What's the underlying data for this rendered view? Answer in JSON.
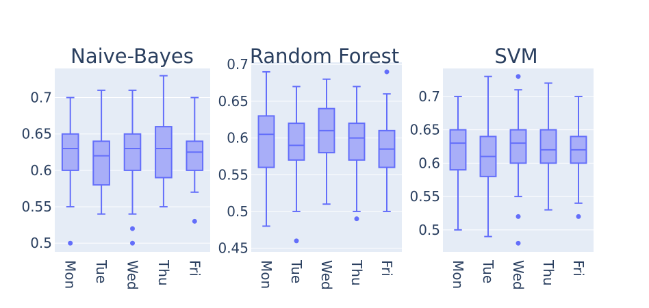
{
  "chart_data": [
    {
      "type": "box",
      "title": "Naive-Bayes",
      "categories": [
        "Mon",
        "Tue",
        "Wed",
        "Thu",
        "Fri"
      ],
      "ylim": [
        0.488,
        0.74
      ],
      "yticks": [
        0.5,
        0.55,
        0.6,
        0.65,
        0.7
      ],
      "ytick_labels": [
        "0.5",
        "0.55",
        "0.6",
        "0.65",
        "0.7"
      ],
      "boxes": [
        {
          "category": "Mon",
          "min": 0.55,
          "q1": 0.6,
          "median": 0.63,
          "q3": 0.65,
          "max": 0.7,
          "outliers": [
            0.5
          ]
        },
        {
          "category": "Tue",
          "min": 0.54,
          "q1": 0.58,
          "median": 0.62,
          "q3": 0.64,
          "max": 0.71,
          "outliers": []
        },
        {
          "category": "Wed",
          "min": 0.54,
          "q1": 0.6,
          "median": 0.63,
          "q3": 0.65,
          "max": 0.71,
          "outliers": [
            0.52,
            0.5
          ]
        },
        {
          "category": "Thu",
          "min": 0.55,
          "q1": 0.59,
          "median": 0.63,
          "q3": 0.66,
          "max": 0.73,
          "outliers": []
        },
        {
          "category": "Fri",
          "min": 0.57,
          "q1": 0.6,
          "median": 0.625,
          "q3": 0.64,
          "max": 0.7,
          "outliers": [
            0.53
          ]
        }
      ]
    },
    {
      "type": "box",
      "title": "Random Forest",
      "categories": [
        "Mon",
        "Tue",
        "Wed",
        "Thu",
        "Fri"
      ],
      "ylim": [
        0.445,
        0.703
      ],
      "yticks": [
        0.45,
        0.5,
        0.55,
        0.6,
        0.65,
        0.7
      ],
      "ytick_labels": [
        "0.45",
        "0.5",
        "0.55",
        "0.6",
        "0.65",
        "0.7"
      ],
      "boxes": [
        {
          "category": "Mon",
          "min": 0.48,
          "q1": 0.56,
          "median": 0.605,
          "q3": 0.63,
          "max": 0.69,
          "outliers": []
        },
        {
          "category": "Tue",
          "min": 0.5,
          "q1": 0.57,
          "median": 0.59,
          "q3": 0.62,
          "max": 0.67,
          "outliers": [
            0.46
          ]
        },
        {
          "category": "Wed",
          "min": 0.51,
          "q1": 0.58,
          "median": 0.61,
          "q3": 0.64,
          "max": 0.68,
          "outliers": []
        },
        {
          "category": "Thu",
          "min": 0.5,
          "q1": 0.57,
          "median": 0.6,
          "q3": 0.62,
          "max": 0.67,
          "outliers": [
            0.49
          ]
        },
        {
          "category": "Fri",
          "min": 0.5,
          "q1": 0.56,
          "median": 0.585,
          "q3": 0.61,
          "max": 0.66,
          "outliers": [
            0.69
          ]
        }
      ]
    },
    {
      "type": "box",
      "title": "SVM",
      "categories": [
        "Mon",
        "Tue",
        "Wed",
        "Thu",
        "Fri"
      ],
      "ylim": [
        0.467,
        0.742
      ],
      "yticks": [
        0.5,
        0.55,
        0.6,
        0.65,
        0.7
      ],
      "ytick_labels": [
        "0.5",
        "0.55",
        "0.6",
        "0.65",
        "0.7"
      ],
      "boxes": [
        {
          "category": "Mon",
          "min": 0.5,
          "q1": 0.59,
          "median": 0.63,
          "q3": 0.65,
          "max": 0.7,
          "outliers": []
        },
        {
          "category": "Tue",
          "min": 0.49,
          "q1": 0.58,
          "median": 0.61,
          "q3": 0.64,
          "max": 0.73,
          "outliers": []
        },
        {
          "category": "Wed",
          "min": 0.55,
          "q1": 0.6,
          "median": 0.63,
          "q3": 0.65,
          "max": 0.71,
          "outliers": [
            0.73,
            0.52,
            0.48
          ]
        },
        {
          "category": "Thu",
          "min": 0.53,
          "q1": 0.6,
          "median": 0.62,
          "q3": 0.65,
          "max": 0.72,
          "outliers": []
        },
        {
          "category": "Fri",
          "min": 0.54,
          "q1": 0.6,
          "median": 0.62,
          "q3": 0.64,
          "max": 0.7,
          "outliers": [
            0.52
          ]
        }
      ]
    }
  ],
  "colors": {
    "plot_bg": "#e5ecf6",
    "grid": "#ffffff",
    "box_line": "#636efa",
    "box_fill": "#a8aef8",
    "text": "#2a3f5f"
  }
}
